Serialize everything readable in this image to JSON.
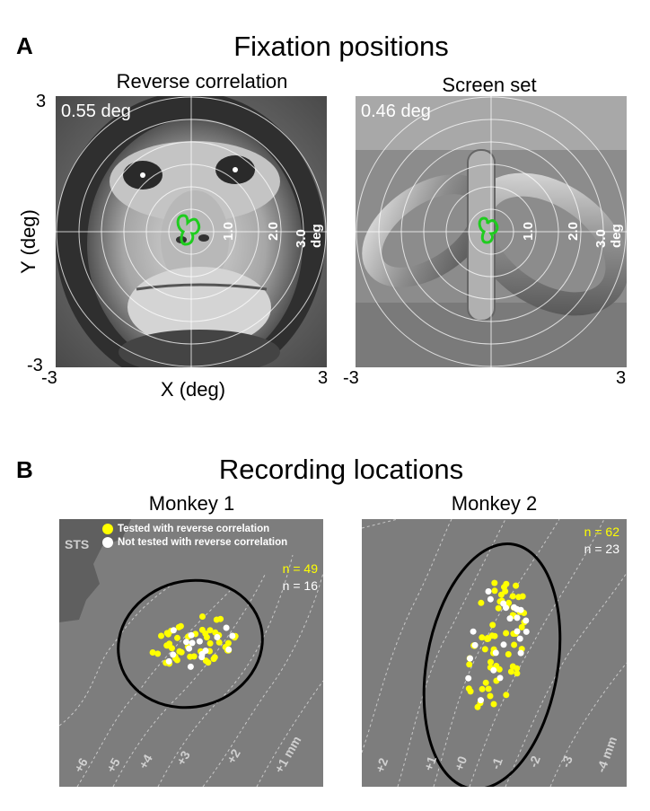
{
  "panel_a": {
    "letter": "A",
    "title": "Fixation positions",
    "left": {
      "subtitle": "Reverse correlation",
      "spread": "0.55 deg",
      "image": "monkey-face"
    },
    "right": {
      "subtitle": "Screen set",
      "spread": "0.46 deg",
      "image": "abstract-object"
    },
    "ring_labels": [
      "1.0",
      "2.0",
      "3.0 deg"
    ],
    "ylabel": "Y (deg)",
    "xlabel": "X (deg)",
    "y_ticks": [
      "3",
      "-3"
    ],
    "x_ticks_left": [
      "-3",
      "3"
    ],
    "x_ticks_right": [
      "-3",
      "3"
    ],
    "fixation_outline_color": "#1fcc1f"
  },
  "panel_b": {
    "letter": "B",
    "title": "Recording locations",
    "monkey1": {
      "title": "Monkey 1",
      "sts_label": "STS",
      "legend": [
        "Tested with reverse correlation",
        "Not tested with reverse correlation"
      ],
      "n_tested": "n = 49",
      "n_not_tested": "n = 16",
      "contour_labels": [
        "+6",
        "+5",
        "+4",
        "+3",
        "+2",
        "+1 mm"
      ]
    },
    "monkey2": {
      "title": "Monkey 2",
      "n_tested": "n = 62",
      "n_not_tested": "n = 23",
      "contour_labels": [
        "+2",
        "+1",
        "+0",
        "-1",
        "-2",
        "-3",
        "-4 mm"
      ]
    },
    "colors": {
      "tested": "#ffff00",
      "not_tested": "#ffffff",
      "background": "#7d7d7d"
    }
  }
}
